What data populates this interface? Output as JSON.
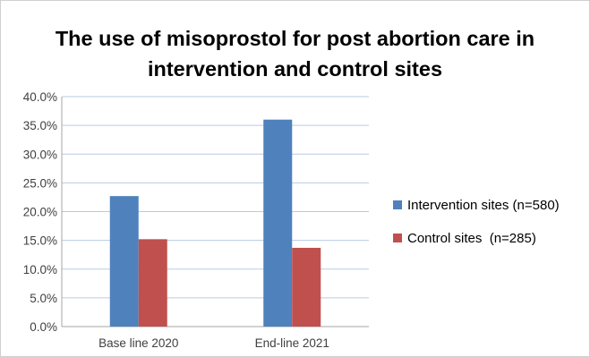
{
  "chart_data": {
    "type": "bar",
    "title_lines": [
      "The use of misoprostol for post abortion care in",
      "intervention and control sites"
    ],
    "categories": [
      "Base line 2020",
      "End-line 2021"
    ],
    "series": [
      {
        "name": "Intervention sites (n=580)",
        "color": "#4f81bd",
        "values": [
          22.7,
          36.0
        ]
      },
      {
        "name": "Control sites  (n=285)",
        "color": "#c0504d",
        "values": [
          15.2,
          13.7
        ]
      }
    ],
    "ylim": [
      0,
      40
    ],
    "y_ticks": [
      "0.0%",
      "5.0%",
      "10.0%",
      "15.0%",
      "20.0%",
      "25.0%",
      "30.0%",
      "35.0%",
      "40.0%"
    ],
    "grid": true,
    "legend_position": "right"
  }
}
